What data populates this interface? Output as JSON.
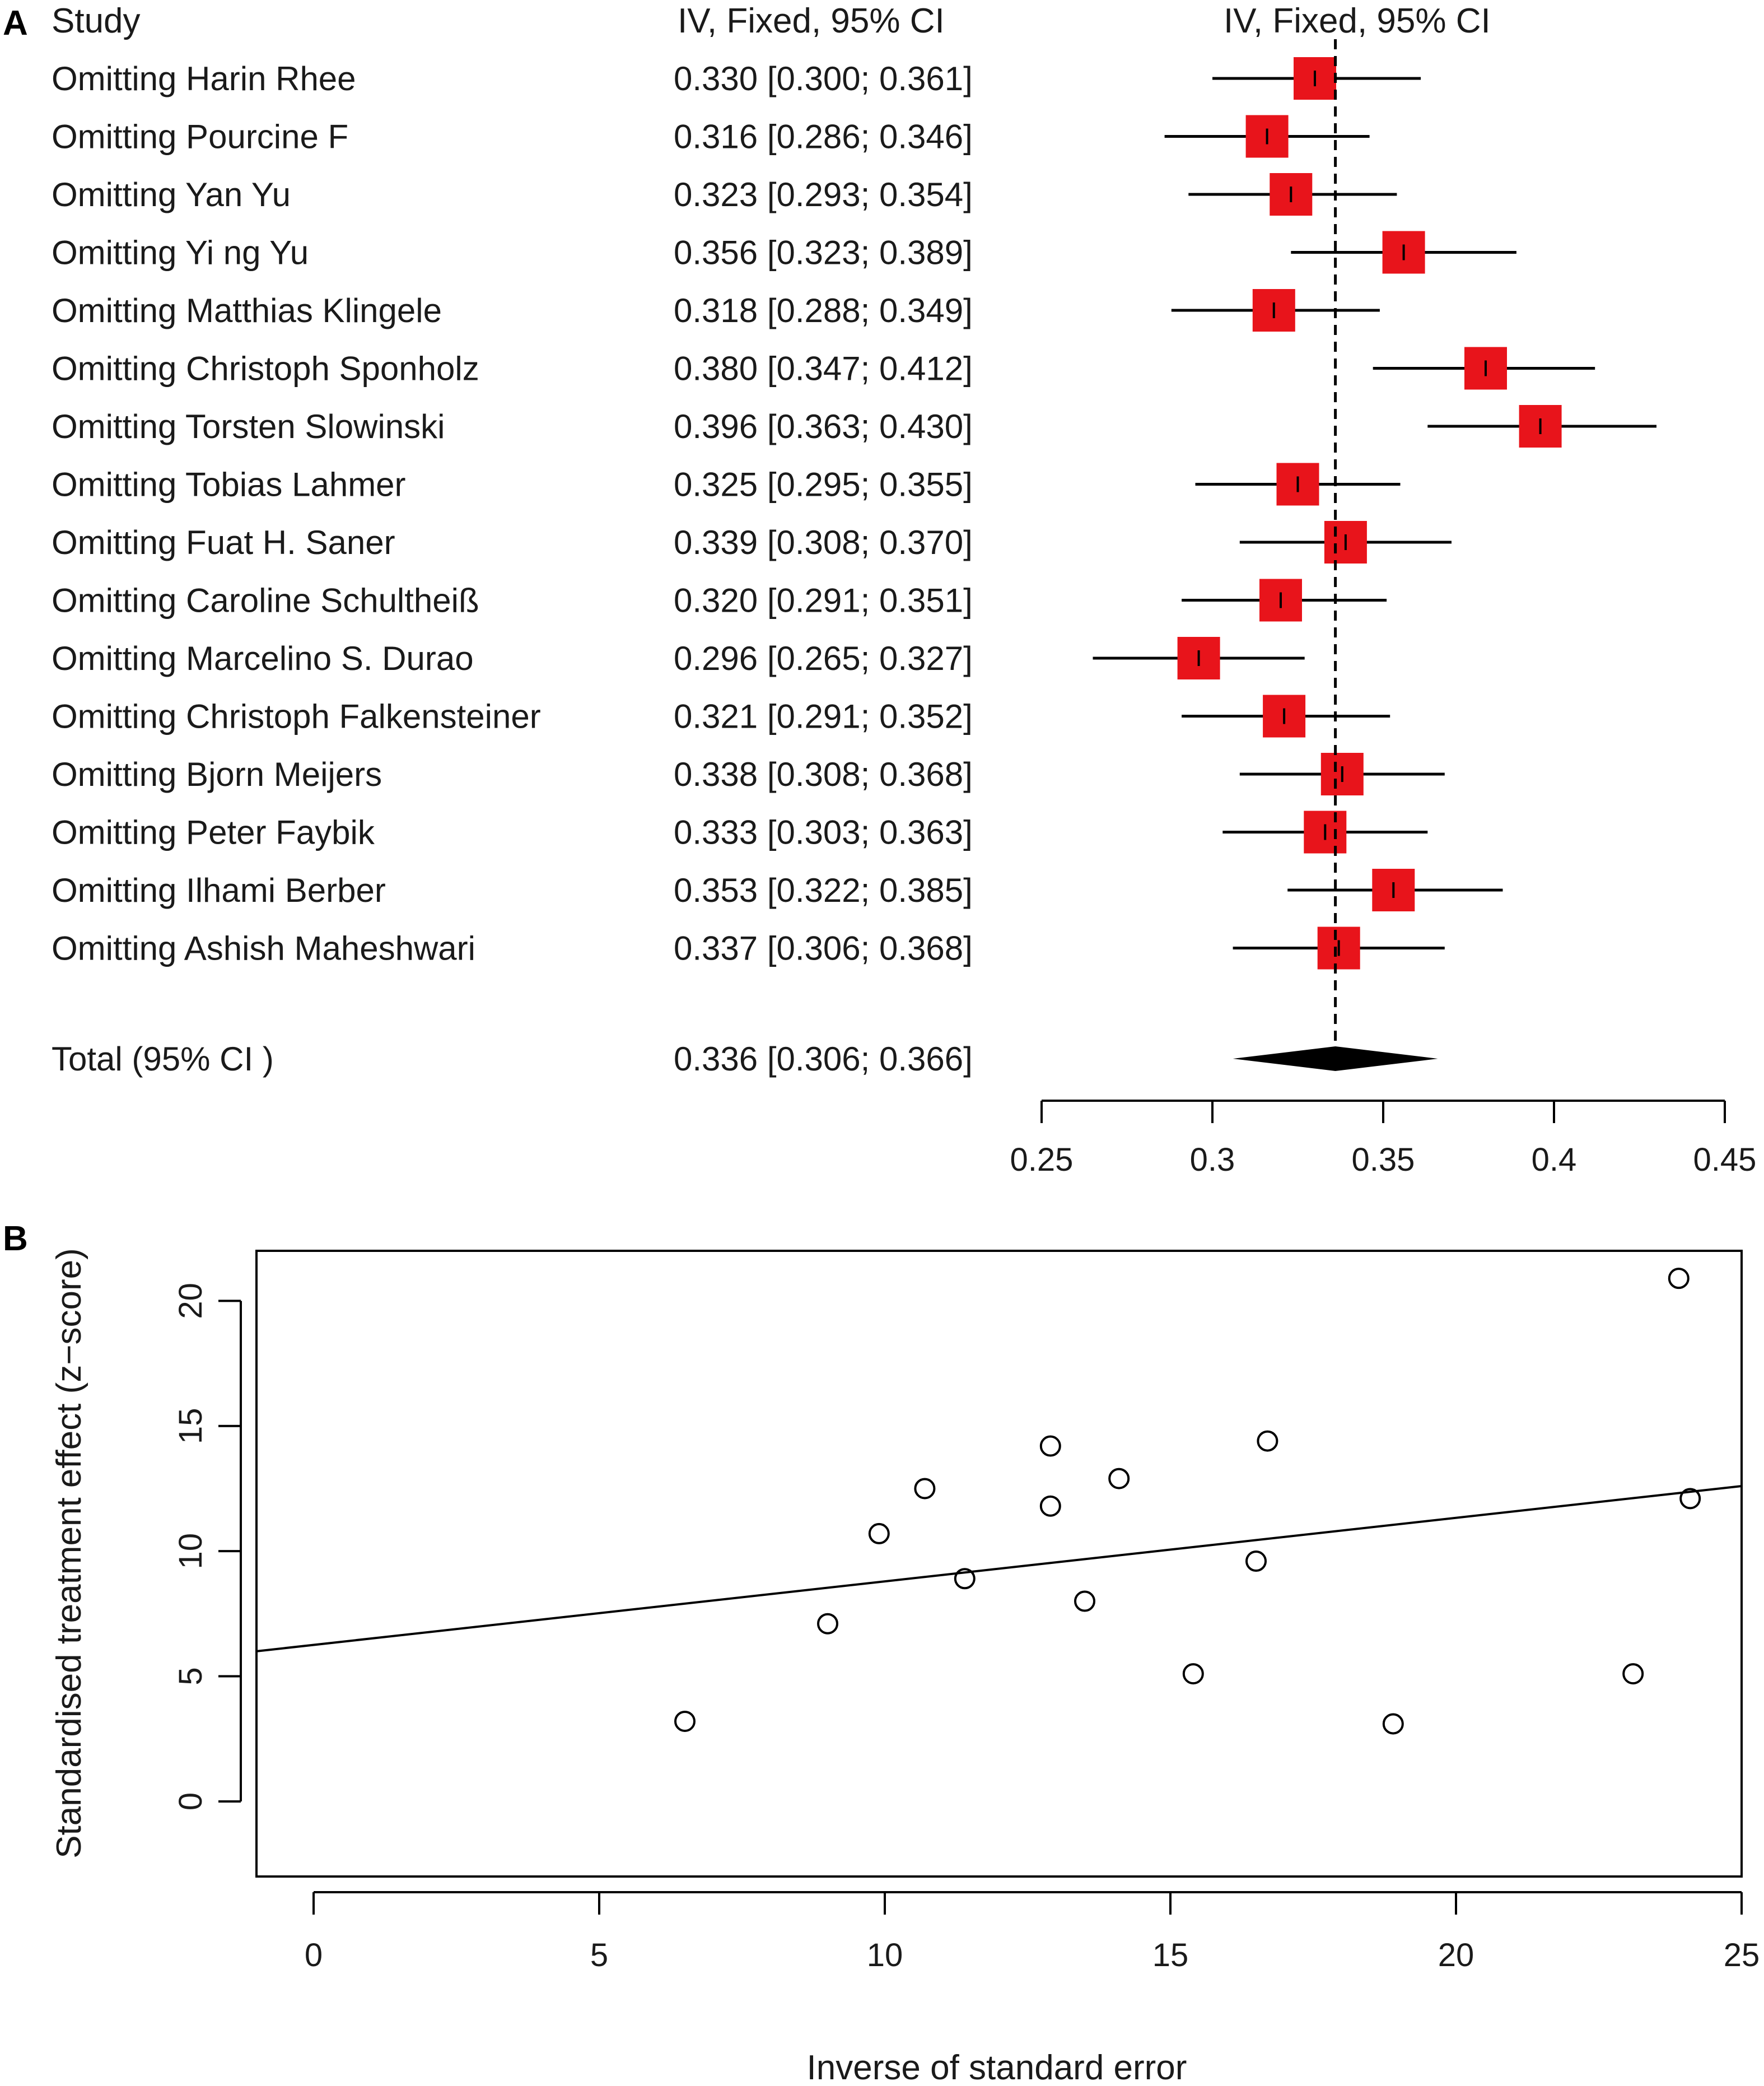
{
  "chart_data": [
    {
      "type": "forest",
      "panel": "A",
      "headers": {
        "study": "Study",
        "estimate": "IV, Fixed, 95% CI",
        "plot": "IV, Fixed, 95% CI"
      },
      "studies": [
        {
          "label": "Omitting Harin Rhee",
          "ci_text": "0.330 [0.300; 0.361]",
          "est": 0.33,
          "lo": 0.3,
          "hi": 0.361
        },
        {
          "label": "Omitting Pourcine F",
          "ci_text": "0.316 [0.286; 0.346]",
          "est": 0.316,
          "lo": 0.286,
          "hi": 0.346
        },
        {
          "label": "Omitting Yan Yu",
          "ci_text": "0.323 [0.293; 0.354]",
          "est": 0.323,
          "lo": 0.293,
          "hi": 0.354
        },
        {
          "label": "Omitting Yi ng Yu",
          "ci_text": "0.356 [0.323; 0.389]",
          "est": 0.356,
          "lo": 0.323,
          "hi": 0.389
        },
        {
          "label": "Omitting Matthias Klingele",
          "ci_text": "0.318 [0.288; 0.349]",
          "est": 0.318,
          "lo": 0.288,
          "hi": 0.349
        },
        {
          "label": "Omitting Christoph Sponholz",
          "ci_text": "0.380 [0.347; 0.412]",
          "est": 0.38,
          "lo": 0.347,
          "hi": 0.412
        },
        {
          "label": "Omitting Torsten Slowinski",
          "ci_text": "0.396 [0.363; 0.430]",
          "est": 0.396,
          "lo": 0.363,
          "hi": 0.43
        },
        {
          "label": "Omitting Tobias Lahmer",
          "ci_text": "0.325 [0.295; 0.355]",
          "est": 0.325,
          "lo": 0.295,
          "hi": 0.355
        },
        {
          "label": "Omitting Fuat H. Saner",
          "ci_text": "0.339 [0.308; 0.370]",
          "est": 0.339,
          "lo": 0.308,
          "hi": 0.37
        },
        {
          "label": "Omitting Caroline Schultheiß",
          "ci_text": "0.320 [0.291; 0.351]",
          "est": 0.32,
          "lo": 0.291,
          "hi": 0.351
        },
        {
          "label": "Omitting Marcelino S. Durao",
          "ci_text": "0.296 [0.265; 0.327]",
          "est": 0.296,
          "lo": 0.265,
          "hi": 0.327
        },
        {
          "label": "Omitting Christoph Falkensteiner",
          "ci_text": "0.321 [0.291; 0.352]",
          "est": 0.321,
          "lo": 0.291,
          "hi": 0.352
        },
        {
          "label": "Omitting Bjorn Meijers",
          "ci_text": "0.338 [0.308; 0.368]",
          "est": 0.338,
          "lo": 0.308,
          "hi": 0.368
        },
        {
          "label": "Omitting Peter Faybik",
          "ci_text": "0.333 [0.303; 0.363]",
          "est": 0.333,
          "lo": 0.303,
          "hi": 0.363
        },
        {
          "label": "Omitting Ilhami Berber",
          "ci_text": "0.353 [0.322; 0.385]",
          "est": 0.353,
          "lo": 0.322,
          "hi": 0.385
        },
        {
          "label": "Omitting Ashish Maheshwari",
          "ci_text": "0.337 [0.306; 0.368]",
          "est": 0.337,
          "lo": 0.306,
          "hi": 0.368
        }
      ],
      "total": {
        "label": "Total (95% CI )",
        "ci_text": "0.336 [0.306; 0.366]",
        "est": 0.336,
        "lo": 0.306,
        "hi": 0.366
      },
      "xlim": [
        0.25,
        0.45
      ],
      "xticks": [
        0.25,
        0.3,
        0.35,
        0.4,
        0.45
      ],
      "xtick_labels": [
        "0.25",
        "0.3",
        "0.35",
        "0.4",
        "0.45"
      ],
      "reference_line": 0.336,
      "colors": {
        "box": "#e8141b",
        "line": "#000000"
      }
    },
    {
      "type": "scatter",
      "panel": "B",
      "xlabel": "Inverse of standard error",
      "ylabel": "Standardised treatment effect (z−score)",
      "xlim": [
        -1,
        25
      ],
      "ylim": [
        -3,
        22
      ],
      "xticks": [
        0,
        5,
        10,
        15,
        20,
        25
      ],
      "xtick_labels": [
        "0",
        "5",
        "10",
        "15",
        "20",
        "25"
      ],
      "yticks": [
        0,
        5,
        10,
        15,
        20
      ],
      "ytick_labels": [
        "0",
        "5",
        "10",
        "15",
        "20"
      ],
      "points": [
        {
          "x": 6.5,
          "y": 3.2
        },
        {
          "x": 9.0,
          "y": 7.1
        },
        {
          "x": 9.9,
          "y": 10.7
        },
        {
          "x": 10.7,
          "y": 12.5
        },
        {
          "x": 11.4,
          "y": 8.9
        },
        {
          "x": 12.9,
          "y": 14.2
        },
        {
          "x": 12.9,
          "y": 11.8
        },
        {
          "x": 13.5,
          "y": 8.0
        },
        {
          "x": 14.1,
          "y": 12.9
        },
        {
          "x": 15.4,
          "y": 5.1
        },
        {
          "x": 16.5,
          "y": 9.6
        },
        {
          "x": 16.7,
          "y": 14.4
        },
        {
          "x": 18.9,
          "y": 3.1
        },
        {
          "x": 23.1,
          "y": 5.1
        },
        {
          "x": 23.9,
          "y": 20.9
        },
        {
          "x": 24.1,
          "y": 12.1
        }
      ],
      "regression": {
        "x": [
          -1,
          25
        ],
        "y": [
          6.0,
          12.6
        ]
      }
    }
  ]
}
